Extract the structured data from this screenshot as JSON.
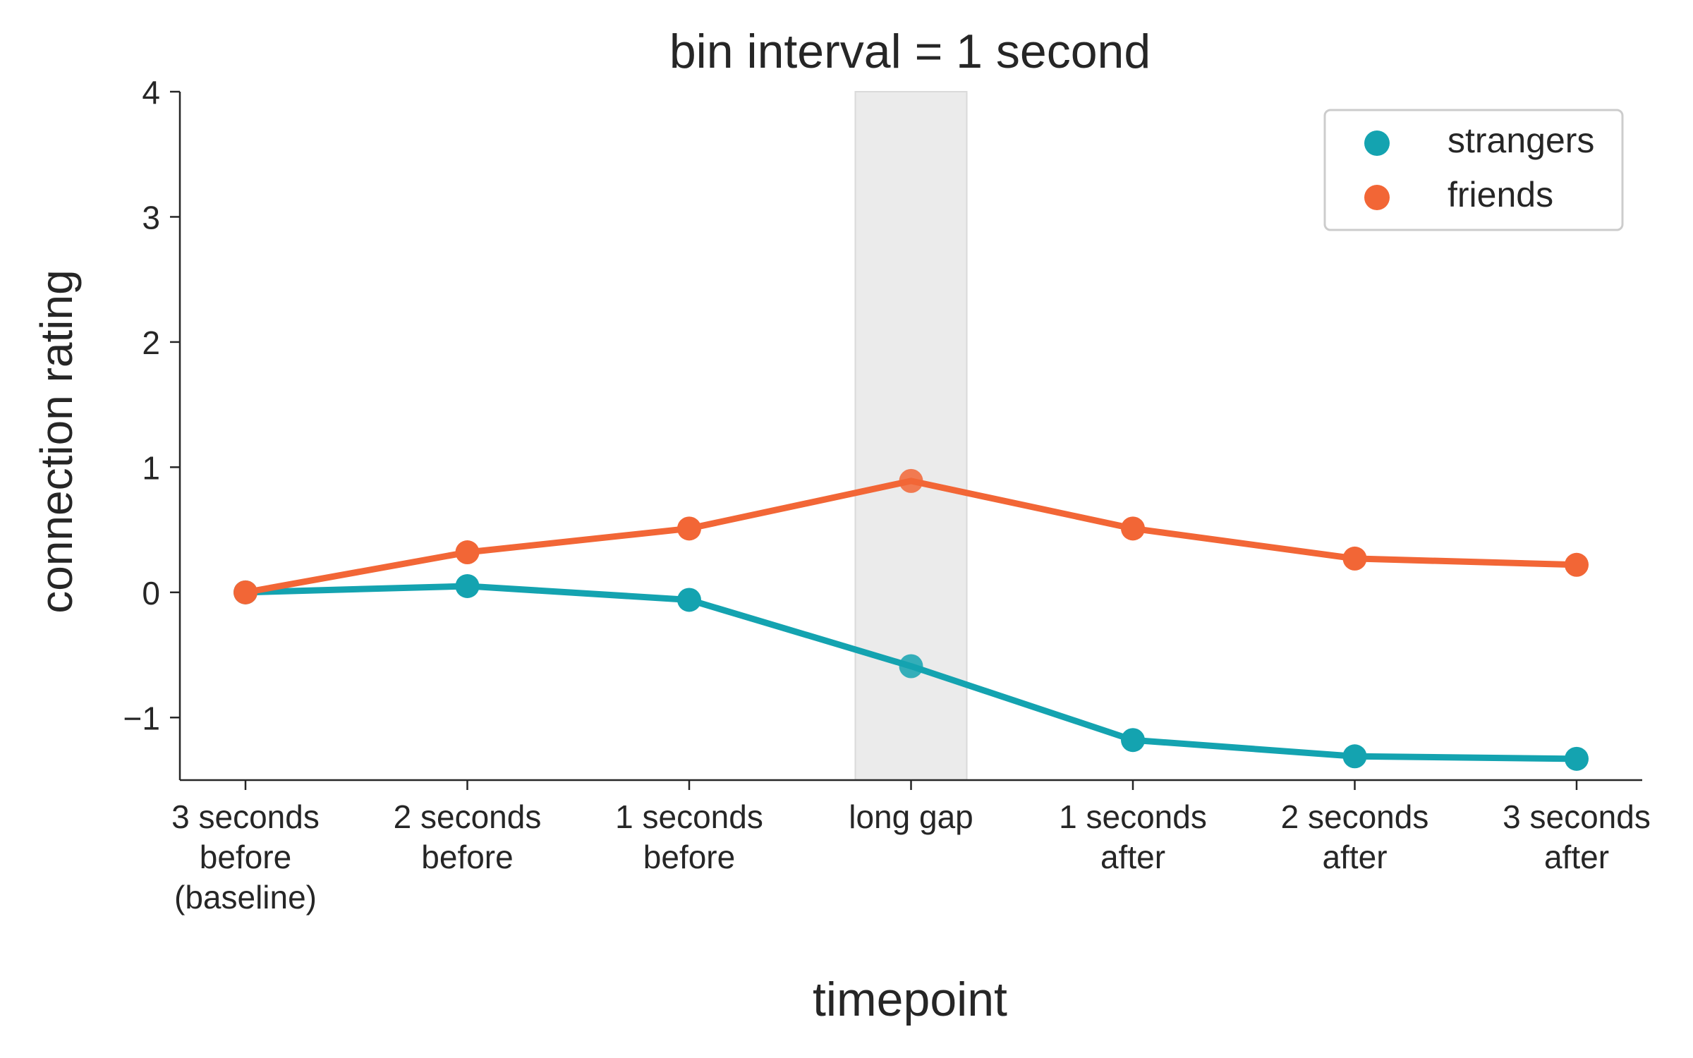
{
  "chart_data": {
    "type": "line",
    "title": "bin interval = 1 second",
    "xlabel": "timepoint",
    "ylabel": "connection rating",
    "categories": [
      [
        "3 seconds",
        "before",
        "(baseline)"
      ],
      [
        "2 seconds",
        "before"
      ],
      [
        "1 seconds",
        "before"
      ],
      [
        "long gap"
      ],
      [
        "1 seconds",
        "after"
      ],
      [
        "2 seconds",
        "after"
      ],
      [
        "3 seconds",
        "after"
      ]
    ],
    "ylim": [
      -1.5,
      4
    ],
    "yticks": [
      -1,
      0,
      1,
      2,
      3,
      4
    ],
    "ytick_labels": [
      "−1",
      "0",
      "1",
      "2",
      "3",
      "4"
    ],
    "highlight_category": "long gap",
    "legend_position": "top-right",
    "grid": false,
    "series": [
      {
        "name": "strangers",
        "color": "#14a3b0",
        "values": [
          0.0,
          0.05,
          -0.06,
          -0.59,
          -1.18,
          -1.31,
          -1.33
        ]
      },
      {
        "name": "friends",
        "color": "#f26636",
        "values": [
          0.0,
          0.32,
          0.51,
          0.89,
          0.51,
          0.27,
          0.22
        ]
      }
    ]
  }
}
